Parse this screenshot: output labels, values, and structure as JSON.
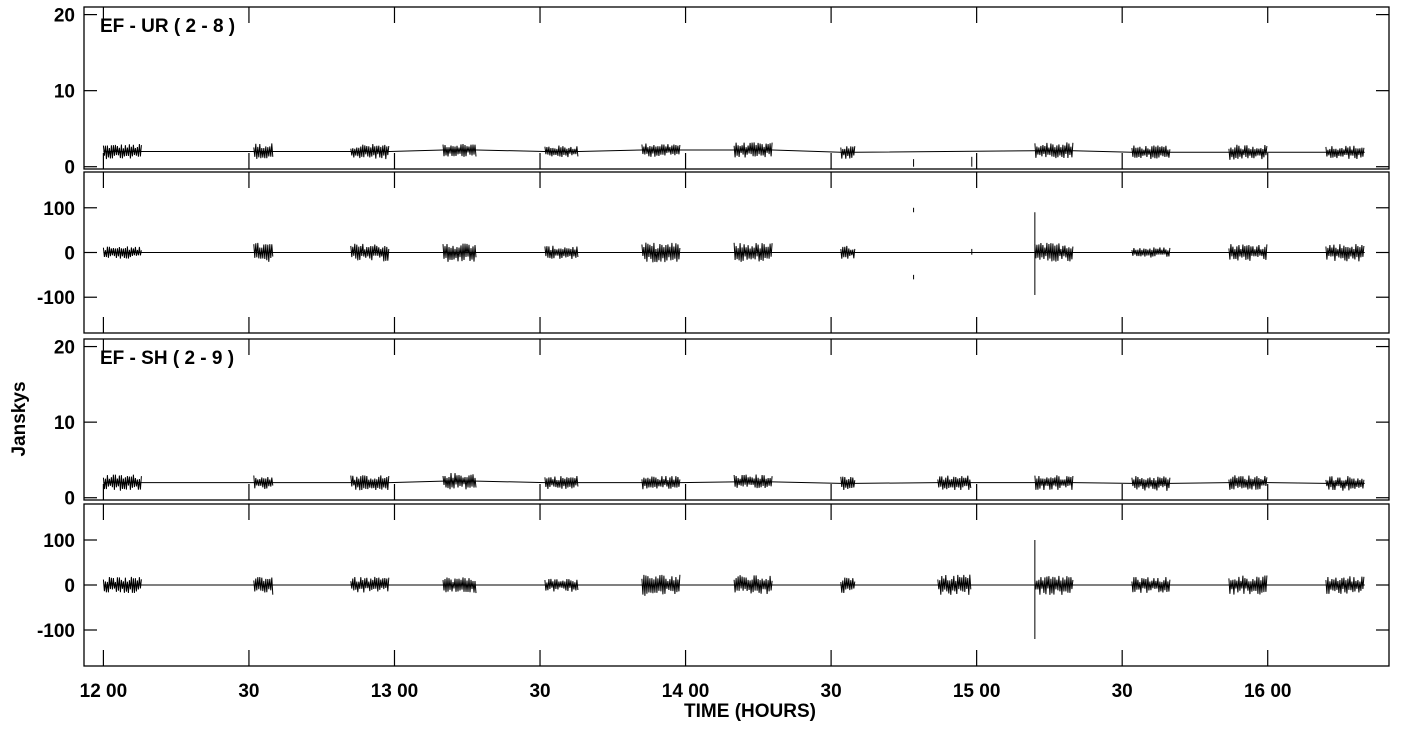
{
  "chart_data": {
    "type": "line",
    "xlabel": "TIME (HOURS)",
    "ylabel": "Janskys",
    "x_unit": "time of day (hh mm)",
    "x_range": [
      "11:56",
      "16:25"
    ],
    "x_ticks": [
      {
        "t": "12:00",
        "label": "12 00"
      },
      {
        "t": "12:30",
        "label": "30"
      },
      {
        "t": "13:00",
        "label": "13 00"
      },
      {
        "t": "13:30",
        "label": "30"
      },
      {
        "t": "14:00",
        "label": "14 00"
      },
      {
        "t": "14:30",
        "label": "30"
      },
      {
        "t": "15:00",
        "label": "15 00"
      },
      {
        "t": "15:30",
        "label": "30"
      },
      {
        "t": "16:00",
        "label": "16 00"
      }
    ],
    "baselines": [
      {
        "title": "EF - UR ( 2 - 8 )",
        "amplitude": {
          "ylim": [
            -0.3,
            21
          ],
          "yticks": [
            0,
            10,
            20
          ],
          "level": 2.0,
          "scatter": 0.6,
          "scans": [
            {
              "start": "12:00",
              "end": "12:08",
              "level": 2.0,
              "spread": 1.0
            },
            {
              "start": "12:31",
              "end": "12:35",
              "level": 2.0,
              "spread": 1.1
            },
            {
              "start": "12:51",
              "end": "12:59",
              "level": 2.0,
              "spread": 1.0
            },
            {
              "start": "13:10",
              "end": "13:17",
              "level": 2.2,
              "spread": 0.9
            },
            {
              "start": "13:31",
              "end": "13:38",
              "level": 2.0,
              "spread": 0.8
            },
            {
              "start": "13:51",
              "end": "13:59",
              "level": 2.2,
              "spread": 0.9
            },
            {
              "start": "14:10",
              "end": "14:18",
              "level": 2.2,
              "spread": 1.0
            },
            {
              "start": "14:32",
              "end": "14:35",
              "level": 1.9,
              "spread": 0.9
            },
            {
              "start": "15:12",
              "end": "15:20",
              "level": 2.1,
              "spread": 1.1
            },
            {
              "start": "15:32",
              "end": "15:40",
              "level": 1.9,
              "spread": 0.9
            },
            {
              "start": "15:52",
              "end": "16:00",
              "level": 1.9,
              "spread": 1.0
            },
            {
              "start": "16:12",
              "end": "16:20",
              "level": 1.9,
              "spread": 0.9
            }
          ],
          "spikes": [
            {
              "t": "14:47",
              "from": 0,
              "to": 1.0
            },
            {
              "t": "14:59",
              "from": 0,
              "to": 1.3
            }
          ]
        },
        "phase": {
          "ylim": [
            -180,
            180
          ],
          "yticks": [
            -100,
            0,
            100
          ],
          "scans": [
            {
              "start": "12:00",
              "end": "12:08",
              "level": 0,
              "spread": 14
            },
            {
              "start": "12:31",
              "end": "12:35",
              "level": 0,
              "spread": 22
            },
            {
              "start": "12:51",
              "end": "12:59",
              "level": 0,
              "spread": 20
            },
            {
              "start": "13:10",
              "end": "13:17",
              "level": 0,
              "spread": 22
            },
            {
              "start": "13:31",
              "end": "13:38",
              "level": 0,
              "spread": 15
            },
            {
              "start": "13:51",
              "end": "13:59",
              "level": 0,
              "spread": 22
            },
            {
              "start": "14:10",
              "end": "14:18",
              "level": 0,
              "spread": 22
            },
            {
              "start": "14:32",
              "end": "14:35",
              "level": 0,
              "spread": 15
            },
            {
              "start": "15:12",
              "end": "15:20",
              "level": 0,
              "spread": 22
            },
            {
              "start": "15:32",
              "end": "15:40",
              "level": 0,
              "spread": 12
            },
            {
              "start": "15:52",
              "end": "16:00",
              "level": 0,
              "spread": 20
            },
            {
              "start": "16:12",
              "end": "16:20",
              "level": 0,
              "spread": 20
            }
          ],
          "spikes": [
            {
              "t": "14:47",
              "from": 90,
              "to": 100
            },
            {
              "t": "14:47",
              "from": -50,
              "to": -60
            },
            {
              "t": "14:59",
              "from": -5,
              "to": 8
            },
            {
              "t": "15:12",
              "from": -95,
              "to": 90
            }
          ]
        }
      },
      {
        "title": "EF - SH ( 2 - 9 )",
        "amplitude": {
          "ylim": [
            -0.3,
            21
          ],
          "yticks": [
            0,
            10,
            20
          ],
          "level": 2.0,
          "scatter": 0.6,
          "scans": [
            {
              "start": "12:00",
              "end": "12:08",
              "level": 2.0,
              "spread": 1.1
            },
            {
              "start": "12:31",
              "end": "12:35",
              "level": 2.0,
              "spread": 1.0
            },
            {
              "start": "12:51",
              "end": "12:59",
              "level": 2.0,
              "spread": 1.0
            },
            {
              "start": "13:10",
              "end": "13:17",
              "level": 2.2,
              "spread": 1.1
            },
            {
              "start": "13:31",
              "end": "13:38",
              "level": 2.0,
              "spread": 0.9
            },
            {
              "start": "13:51",
              "end": "13:59",
              "level": 2.0,
              "spread": 0.9
            },
            {
              "start": "14:10",
              "end": "14:18",
              "level": 2.1,
              "spread": 1.0
            },
            {
              "start": "14:32",
              "end": "14:35",
              "level": 1.9,
              "spread": 0.9
            },
            {
              "start": "14:52",
              "end": "14:59",
              "level": 2.0,
              "spread": 1.0
            },
            {
              "start": "15:12",
              "end": "15:20",
              "level": 2.0,
              "spread": 1.0
            },
            {
              "start": "15:32",
              "end": "15:40",
              "level": 1.9,
              "spread": 1.0
            },
            {
              "start": "15:52",
              "end": "16:00",
              "level": 2.0,
              "spread": 1.0
            },
            {
              "start": "16:12",
              "end": "16:20",
              "level": 1.9,
              "spread": 1.0
            }
          ],
          "spikes": []
        },
        "phase": {
          "ylim": [
            -180,
            180
          ],
          "yticks": [
            -100,
            0,
            100
          ],
          "scans": [
            {
              "start": "12:00",
              "end": "12:08",
              "level": 0,
              "spread": 18
            },
            {
              "start": "12:31",
              "end": "12:35",
              "level": 0,
              "spread": 22
            },
            {
              "start": "12:51",
              "end": "12:59",
              "level": 0,
              "spread": 18
            },
            {
              "start": "13:10",
              "end": "13:17",
              "level": 0,
              "spread": 18
            },
            {
              "start": "13:31",
              "end": "13:38",
              "level": 0,
              "spread": 15
            },
            {
              "start": "13:51",
              "end": "13:59",
              "level": 0,
              "spread": 24
            },
            {
              "start": "14:10",
              "end": "14:18",
              "level": 0,
              "spread": 22
            },
            {
              "start": "14:32",
              "end": "14:35",
              "level": 0,
              "spread": 18
            },
            {
              "start": "14:52",
              "end": "14:59",
              "level": 0,
              "spread": 24
            },
            {
              "start": "15:12",
              "end": "15:20",
              "level": 0,
              "spread": 22
            },
            {
              "start": "15:32",
              "end": "15:40",
              "level": 0,
              "spread": 18
            },
            {
              "start": "15:52",
              "end": "16:00",
              "level": 0,
              "spread": 22
            },
            {
              "start": "16:12",
              "end": "16:20",
              "level": 0,
              "spread": 20
            }
          ],
          "spikes": [
            {
              "t": "15:12",
              "from": -120,
              "to": 100
            }
          ]
        }
      }
    ]
  }
}
